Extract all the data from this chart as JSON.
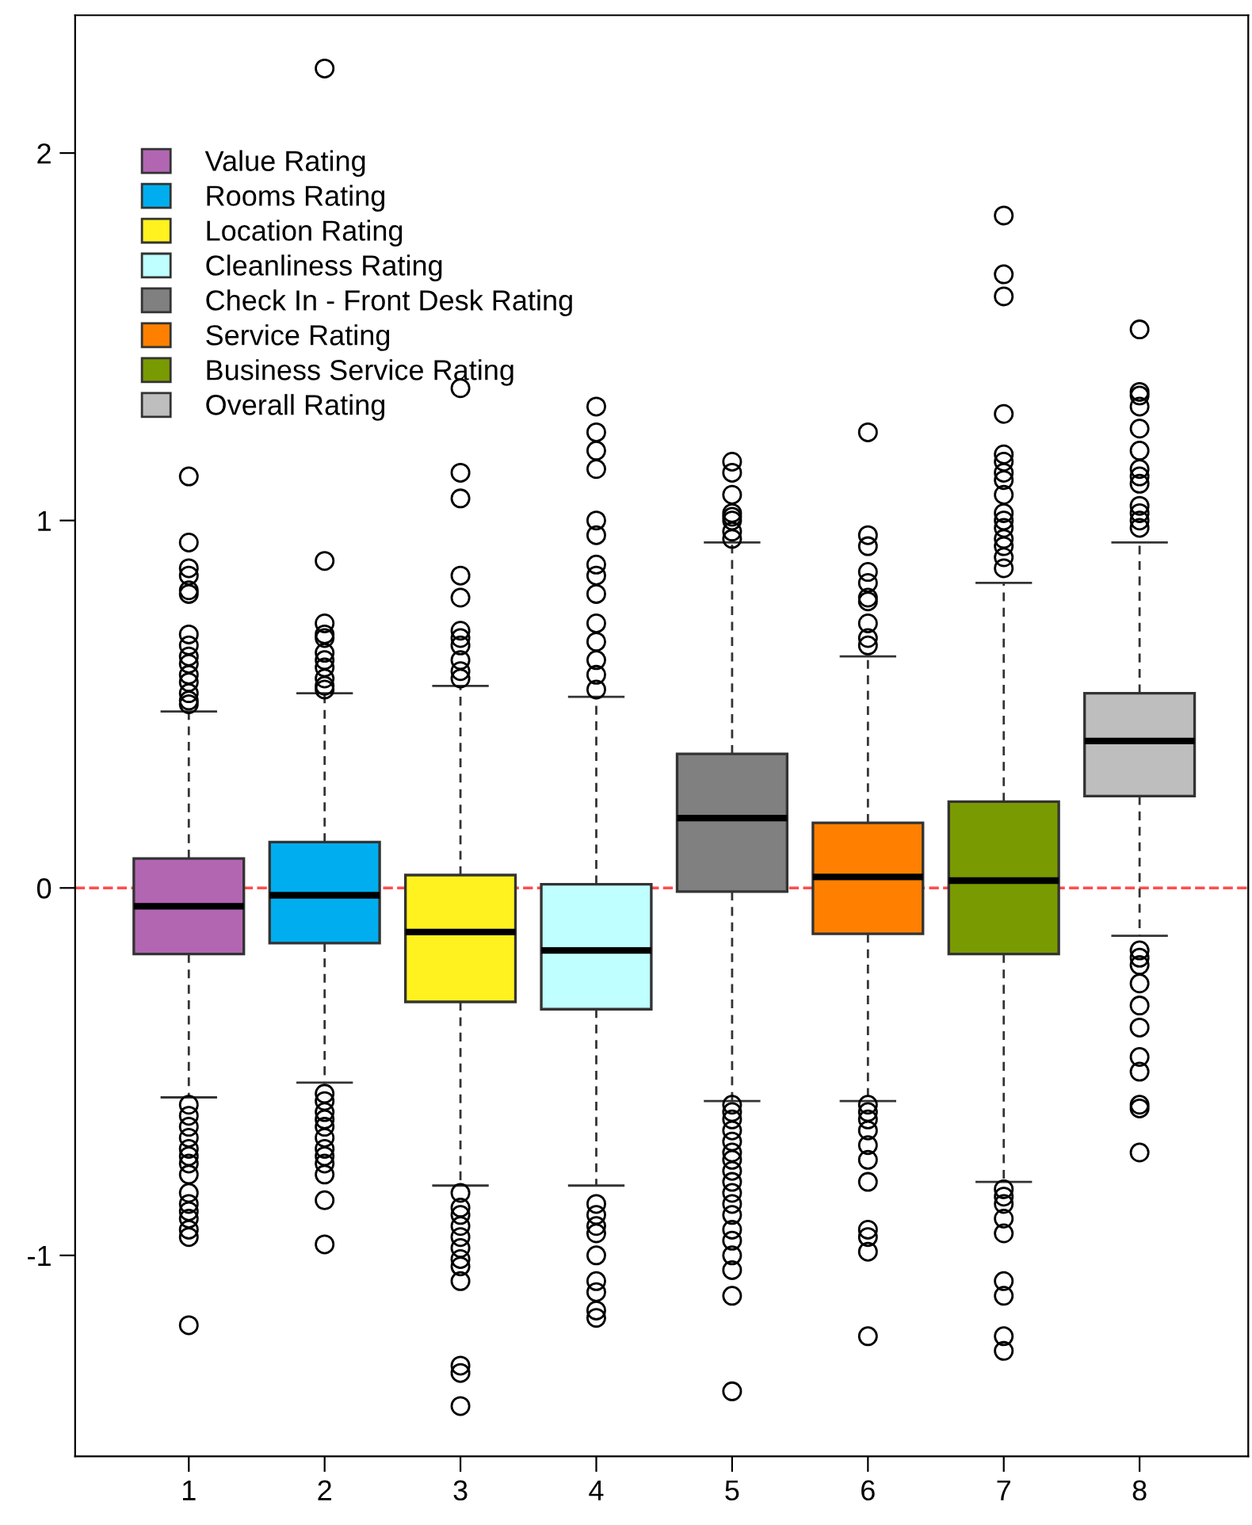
{
  "chart_data": {
    "type": "box",
    "categories": [
      "1",
      "2",
      "3",
      "4",
      "5",
      "6",
      "7",
      "8"
    ],
    "ylim": [
      -1.547,
      2.375
    ],
    "yticks": [
      {
        "value": -1,
        "label": "-1"
      },
      0,
      1,
      2
    ],
    "grid": false,
    "legend": "top left",
    "ref_lines": [
      {
        "axis": "y",
        "value": 0,
        "label": null,
        "color": "#ff4d4d",
        "line_style": "dashed"
      }
    ],
    "series": [
      {
        "name": "Value Rating",
        "color": "#b266b2",
        "x": [
          "1"
        ],
        "boxes": [
          {
            "low": -0.57,
            "q1": -0.18,
            "median": -0.05,
            "q3": 0.08,
            "high": 0.48,
            "outliers": [
              1.12,
              0.94,
              0.87,
              0.85,
              0.81,
              0.8,
              0.69,
              0.66,
              0.63,
              0.61,
              0.58,
              0.56,
              0.53,
              0.51,
              0.5,
              -0.59,
              -0.62,
              -0.65,
              -0.68,
              -0.71,
              -0.73,
              -0.75,
              -0.78,
              -0.83,
              -0.86,
              -0.88,
              -0.9,
              -0.93,
              -0.95,
              -1.19
            ]
          }
        ]
      },
      {
        "name": "Rooms Rating",
        "color": "#00aeef",
        "x": [
          "2"
        ],
        "boxes": [
          {
            "low": -0.53,
            "q1": -0.15,
            "median": -0.02,
            "q3": 0.125,
            "high": 0.53,
            "outliers": [
              2.23,
              0.89,
              0.72,
              0.69,
              0.68,
              0.64,
              0.62,
              0.6,
              0.57,
              0.55,
              0.54,
              -0.56,
              -0.58,
              -0.61,
              -0.63,
              -0.65,
              -0.68,
              -0.71,
              -0.73,
              -0.75,
              -0.78,
              -0.85,
              -0.97
            ]
          }
        ]
      },
      {
        "name": "Location Rating",
        "color": "#fff21f",
        "x": [
          "3"
        ],
        "boxes": [
          {
            "low": -0.81,
            "q1": -0.31,
            "median": -0.12,
            "q3": 0.035,
            "high": 0.55,
            "outliers": [
              1.36,
              1.13,
              1.06,
              0.85,
              0.79,
              0.7,
              0.68,
              0.66,
              0.62,
              0.59,
              0.57,
              -0.83,
              -0.87,
              -0.89,
              -0.92,
              -0.95,
              -0.98,
              -1.01,
              -1.03,
              -1.07,
              -1.3,
              -1.32,
              -1.41
            ]
          }
        ]
      },
      {
        "name": "Cleanliness Rating",
        "color": "#bfffff",
        "x": [
          "4"
        ],
        "boxes": [
          {
            "low": -0.81,
            "q1": -0.33,
            "median": -0.17,
            "q3": 0.01,
            "high": 0.52,
            "outliers": [
              1.31,
              1.24,
              1.19,
              1.14,
              1.0,
              0.96,
              0.88,
              0.85,
              0.8,
              0.72,
              0.67,
              0.62,
              0.58,
              0.54,
              -0.86,
              -0.89,
              -0.92,
              -0.94,
              -1.0,
              -1.07,
              -1.1,
              -1.15,
              -1.17
            ]
          }
        ]
      },
      {
        "name": "Check In - Front Desk Rating",
        "color": "#808080",
        "x": [
          "5"
        ],
        "boxes": [
          {
            "low": -0.58,
            "q1": -0.01,
            "median": 0.19,
            "q3": 0.365,
            "high": 0.94,
            "outliers": [
              1.16,
              1.13,
              1.07,
              1.02,
              1.01,
              1.0,
              0.97,
              0.95,
              -0.59,
              -0.61,
              -0.63,
              -0.66,
              -0.69,
              -0.72,
              -0.74,
              -0.77,
              -0.8,
              -0.83,
              -0.86,
              -0.89,
              -0.93,
              -0.96,
              -1.0,
              -1.04,
              -1.11,
              -1.37
            ]
          }
        ]
      },
      {
        "name": "Service Rating",
        "color": "#ff8000",
        "x": [
          "6"
        ],
        "boxes": [
          {
            "low": -0.58,
            "q1": -0.125,
            "median": 0.03,
            "q3": 0.177,
            "high": 0.63,
            "outliers": [
              1.24,
              0.96,
              0.93,
              0.86,
              0.83,
              0.79,
              0.78,
              0.72,
              0.68,
              0.66,
              -0.59,
              -0.61,
              -0.63,
              -0.66,
              -0.7,
              -0.74,
              -0.8,
              -0.93,
              -0.95,
              -0.99,
              -1.22
            ]
          }
        ]
      },
      {
        "name": "Business Service Rating",
        "color": "#7a9a01",
        "x": [
          "7"
        ],
        "boxes": [
          {
            "low": -0.8,
            "q1": -0.18,
            "median": 0.02,
            "q3": 0.235,
            "high": 0.83,
            "outliers": [
              1.83,
              1.67,
              1.61,
              1.29,
              1.18,
              1.16,
              1.13,
              1.11,
              1.07,
              1.02,
              1.0,
              0.98,
              0.95,
              0.93,
              0.9,
              0.87,
              -0.82,
              -0.84,
              -0.86,
              -0.9,
              -0.94,
              -1.07,
              -1.11,
              -1.22,
              -1.26
            ]
          }
        ]
      },
      {
        "name": "Overall Rating",
        "color": "#bebebe",
        "x": [
          "8"
        ],
        "boxes": [
          {
            "low": -0.13,
            "q1": 0.25,
            "median": 0.4,
            "q3": 0.53,
            "high": 0.94,
            "outliers": [
              1.52,
              1.35,
              1.34,
              1.31,
              1.25,
              1.19,
              1.14,
              1.12,
              1.1,
              1.04,
              1.02,
              1.0,
              0.98,
              -0.17,
              -0.19,
              -0.21,
              -0.26,
              -0.32,
              -0.38,
              -0.46,
              -0.5,
              -0.59,
              -0.6,
              -0.72
            ]
          }
        ]
      }
    ]
  }
}
